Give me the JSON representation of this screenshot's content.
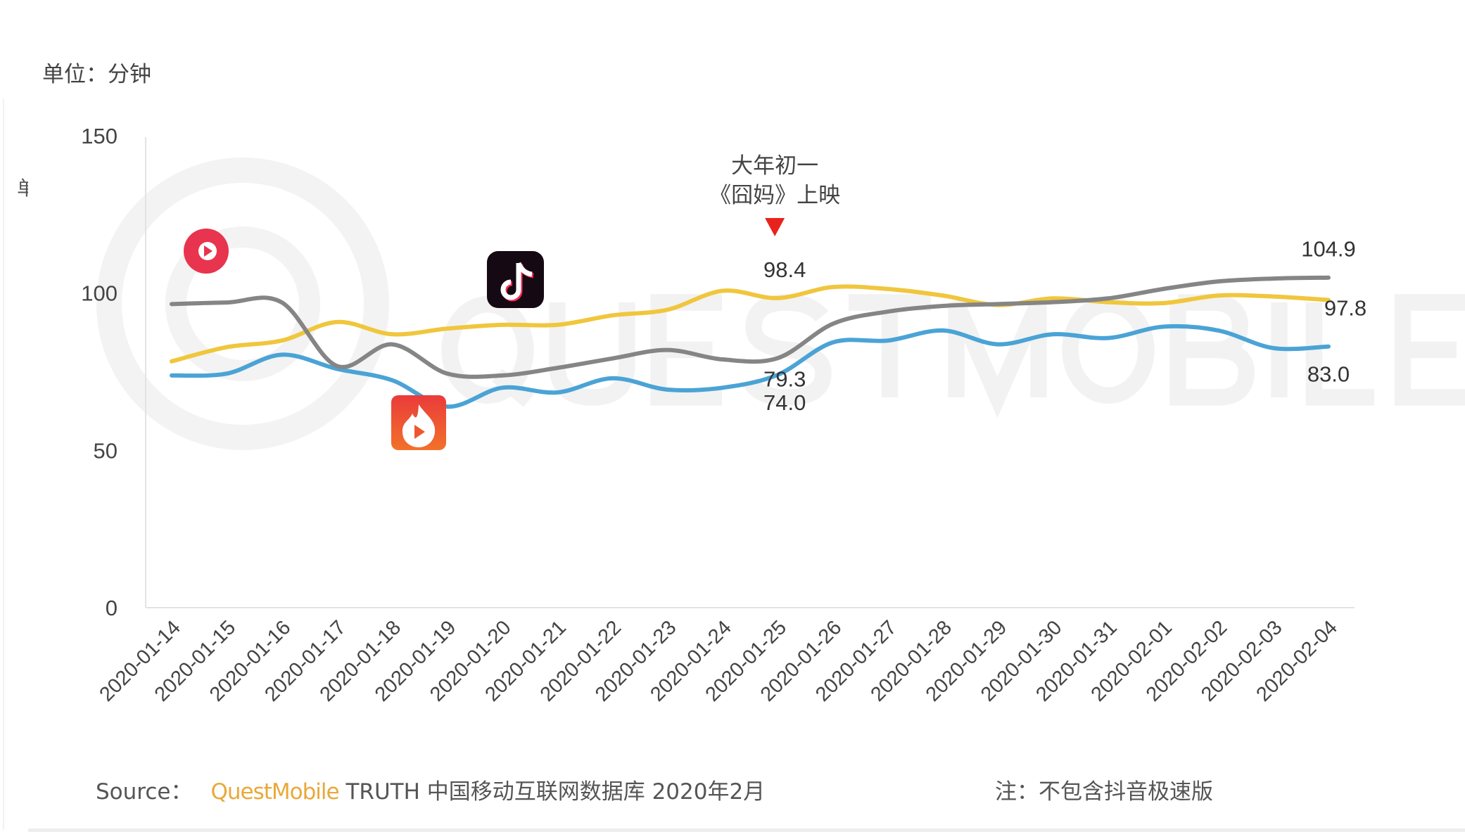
{
  "unit_label": "单位：分钟",
  "clipped_char": "单",
  "footer": {
    "source_prefix": "Source：",
    "brand": "QuestMobile",
    "source_rest": "TRUTH 中国移动互联网数据库 2020年2月",
    "note": "注：不包含抖音极速版"
  },
  "watermark": "QUESTMOBILE",
  "icons": [
    "red-play-app-icon",
    "douyin-app-icon",
    "huoshan-app-icon"
  ],
  "chart_data": {
    "type": "line",
    "title": "",
    "xlabel": "",
    "ylabel": "",
    "ylim": [
      0,
      150
    ],
    "yticks": [
      "0",
      "50",
      "100",
      "150"
    ],
    "grid": false,
    "categories": [
      "2020-01-14",
      "2020-01-15",
      "2020-01-16",
      "2020-01-17",
      "2020-01-18",
      "2020-01-19",
      "2020-01-20",
      "2020-01-21",
      "2020-01-22",
      "2020-01-23",
      "2020-01-24",
      "2020-01-25",
      "2020-01-26",
      "2020-01-27",
      "2020-01-28",
      "2020-01-29",
      "2020-01-30",
      "2020-01-31",
      "2020-02-01",
      "2020-02-02",
      "2020-02-03",
      "2020-02-04"
    ],
    "series": [
      {
        "color": "#f0c63c",
        "values": [
          78.3,
          82.8,
          84.9,
          90.8,
          86.9,
          88.7,
          89.9,
          89.9,
          92.9,
          94.7,
          100.7,
          98.4,
          101.9,
          101.3,
          99.2,
          96.2,
          98.3,
          97.1,
          96.8,
          99.2,
          98.9,
          97.8
        ]
      },
      {
        "color": "#4aa3d6",
        "values": [
          73.8,
          74.4,
          80.4,
          75.9,
          72.3,
          63.9,
          69.9,
          68.4,
          72.9,
          69.3,
          69.9,
          74.0,
          84.3,
          84.9,
          88.1,
          83.7,
          86.9,
          85.7,
          89.3,
          88.1,
          82.5,
          83.0
        ]
      },
      {
        "color": "#858585",
        "values": [
          96.5,
          97.0,
          97.0,
          76.8,
          83.7,
          74.4,
          73.8,
          76.2,
          79.2,
          81.9,
          78.9,
          79.3,
          90.2,
          94.1,
          95.9,
          96.5,
          97.1,
          98.3,
          101.3,
          103.7,
          104.6,
          104.9
        ]
      }
    ],
    "data_labels": [
      {
        "text": "98.4",
        "x": "2020-01-25",
        "series": 0
      },
      {
        "text": "79.3",
        "x": "2020-01-25",
        "series": 2
      },
      {
        "text": "74.0",
        "x": "2020-01-25",
        "series": 1
      },
      {
        "text": "104.9",
        "x": "2020-02-04",
        "series": 2
      },
      {
        "text": "97.8",
        "x": "2020-02-04",
        "series": 0
      },
      {
        "text": "83.0",
        "x": "2020-02-04",
        "series": 1
      }
    ],
    "annotation": {
      "line1": "大年初一",
      "line2": "《囧妈》上映",
      "x": "2020-01-25",
      "marker_color": "#e8231b"
    }
  }
}
